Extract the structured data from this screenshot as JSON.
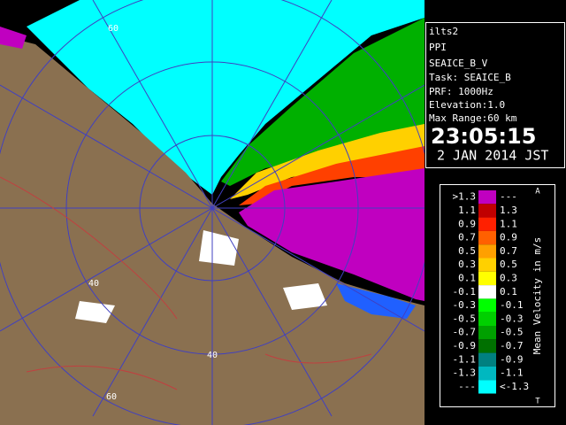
{
  "header": {
    "station": "ilts2",
    "mode": "PPI",
    "product": "SEAICE_B_V",
    "task": "Task: SEAICE_B",
    "prf": "PRF: 1000Hz",
    "elevation": "Elevation:1.0",
    "max_range": "Max Range:60 km",
    "time": "23:05:15",
    "date": "2 JAN 2014 JST"
  },
  "range_labels": [
    "60",
    "40",
    "40",
    "60"
  ],
  "legend": {
    "title": "Mean Velocity in m/s",
    "top_mark": "A",
    "bottom_mark": "T",
    "rows": [
      {
        "low": ">1.3",
        "high": "---",
        "color": "#c000c0"
      },
      {
        "low": "1.1",
        "high": "1.3",
        "color": "#c00000"
      },
      {
        "low": "0.9",
        "high": "1.1",
        "color": "#ff2000"
      },
      {
        "low": "0.7",
        "high": "0.9",
        "color": "#ff6000"
      },
      {
        "low": "0.5",
        "high": "0.7",
        "color": "#ffa000"
      },
      {
        "low": "0.3",
        "high": "0.5",
        "color": "#ffd000"
      },
      {
        "low": "0.1",
        "high": "0.3",
        "color": "#ffff00"
      },
      {
        "low": "-0.1",
        "high": "0.1",
        "color": "#ffffff"
      },
      {
        "low": "-0.3",
        "high": "-0.1",
        "color": "#00ff00"
      },
      {
        "low": "-0.5",
        "high": "-0.3",
        "color": "#00d000"
      },
      {
        "low": "-0.7",
        "high": "-0.5",
        "color": "#00a000"
      },
      {
        "low": "-0.9",
        "high": "-0.7",
        "color": "#007000"
      },
      {
        "low": "-1.1",
        "high": "-0.9",
        "color": "#008080"
      },
      {
        "low": "-1.3",
        "high": "-1.1",
        "color": "#00b8c0"
      },
      {
        "low": "---",
        "high": "<-1.3",
        "color": "#00ffff"
      }
    ]
  }
}
